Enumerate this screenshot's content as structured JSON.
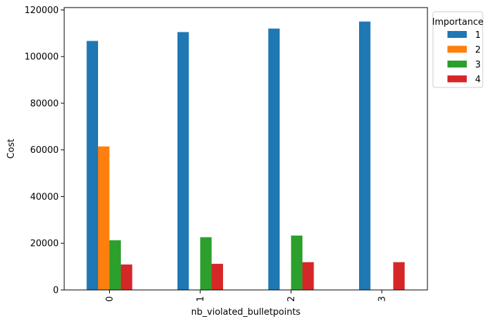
{
  "chart_data": {
    "type": "bar",
    "title": "",
    "xlabel": "nb_violated_bulletpoints",
    "ylabel": "Cost",
    "categories": [
      "0",
      "1",
      "2",
      "3"
    ],
    "ylim": [
      0,
      121000
    ],
    "yticks": [
      0,
      20000,
      40000,
      60000,
      80000,
      100000,
      120000
    ],
    "grid": false,
    "legend": {
      "title": "Importance",
      "placement": "outside-top-right"
    },
    "series": [
      {
        "name": "1",
        "color": "#1f77b4",
        "values": [
          106700,
          110500,
          112000,
          115000
        ]
      },
      {
        "name": "2",
        "color": "#ff7f0e",
        "values": [
          61500,
          0,
          0,
          0
        ]
      },
      {
        "name": "3",
        "color": "#2ca02c",
        "values": [
          21300,
          22600,
          23300,
          0
        ]
      },
      {
        "name": "4",
        "color": "#d62728",
        "values": [
          10900,
          11200,
          11900,
          11900
        ]
      }
    ]
  }
}
